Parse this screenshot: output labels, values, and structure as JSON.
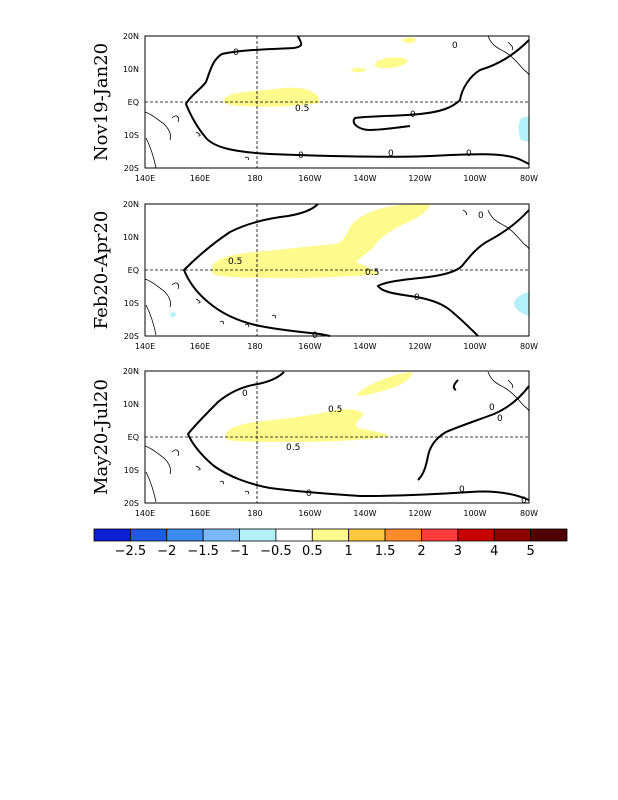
{
  "panels": [
    {
      "title": "Nov19-Jan20",
      "contour_labels": [
        "0",
        "0",
        "0",
        "0",
        "0",
        "0",
        "0.5"
      ],
      "lon_labels": [
        "140E",
        "160E",
        "180",
        "160W",
        "140W",
        "120W",
        "100W",
        "80W"
      ],
      "lat_labels": [
        "20N",
        "10N",
        "EQ",
        "10S",
        "20S"
      ]
    },
    {
      "title": "Feb20-Apr20",
      "contour_labels": [
        "0",
        "0",
        "0",
        "0.5",
        "0.5"
      ],
      "lon_labels": [
        "140E",
        "160E",
        "180",
        "160W",
        "140W",
        "120W",
        "100W",
        "80W"
      ],
      "lat_labels": [
        "20N",
        "10N",
        "EQ",
        "10S",
        "20S"
      ]
    },
    {
      "title": "May20-Jul20",
      "contour_labels": [
        "0",
        "0",
        "0",
        "0",
        "0",
        "0",
        "0.5",
        "0.5"
      ],
      "lon_labels": [
        "140E",
        "160E",
        "180",
        "160W",
        "140W",
        "120W",
        "100W",
        "80W"
      ],
      "lat_labels": [
        "20N",
        "10N",
        "EQ",
        "10S",
        "20S"
      ]
    }
  ],
  "colorbar": {
    "labels": [
      "-2.5",
      "-2",
      "-1.5",
      "-1",
      "-0.5",
      "0.5",
      "1",
      "1.5",
      "2",
      "3",
      "4",
      "5"
    ],
    "colors": [
      "#0a1ed2",
      "#1e5ae6",
      "#3c8cf0",
      "#78b9fa",
      "#b4f0fa",
      "#ffffff",
      "#fffa8c",
      "#ffc83c",
      "#ff8c28",
      "#ff3c3c",
      "#c80000",
      "#8c0000",
      "#500000"
    ]
  }
}
